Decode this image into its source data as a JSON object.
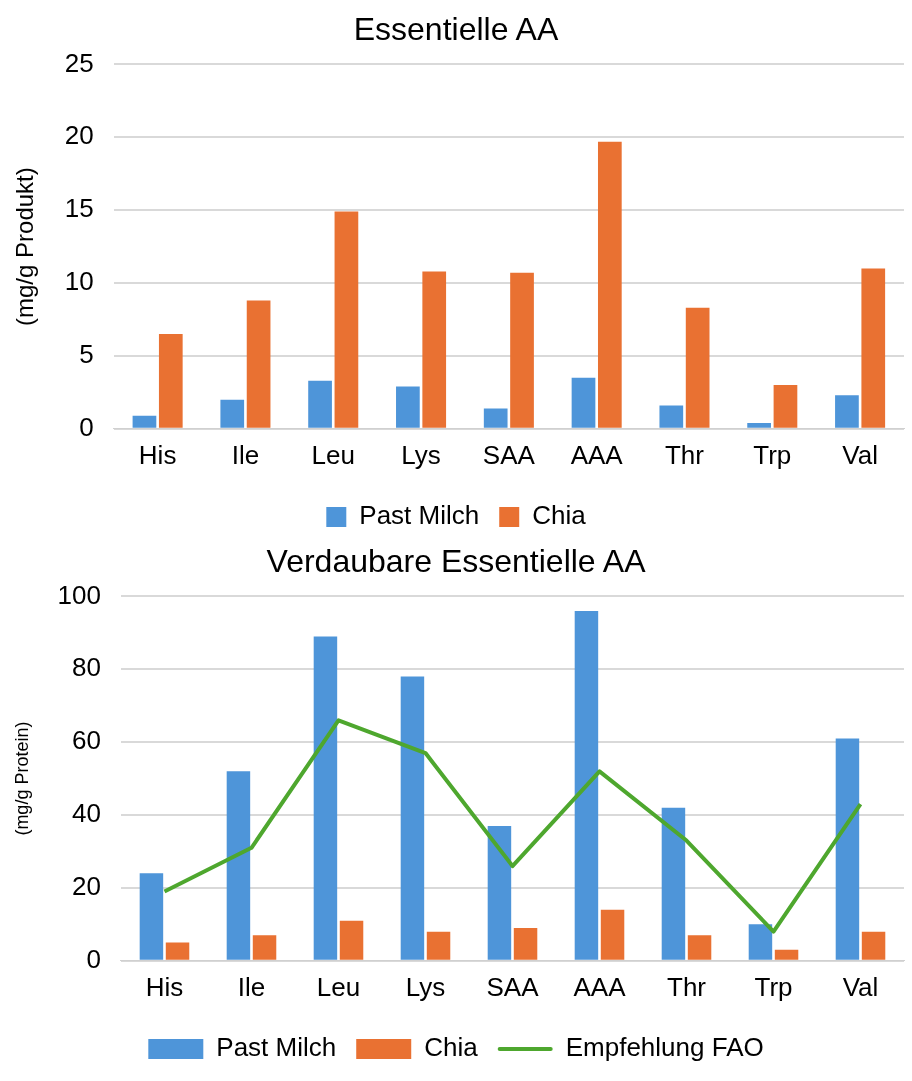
{
  "chart_data": [
    {
      "type": "bar",
      "title": "Essentielle AA",
      "ylabel": "(mg/g Produkt)",
      "categories": [
        "His",
        "Ile",
        "Leu",
        "Lys",
        "SAA",
        "AAA",
        "Thr",
        "Trp",
        "Val"
      ],
      "series": [
        {
          "name": "Past Milch",
          "color": "#4e95d9",
          "values": [
            0.9,
            2.0,
            3.3,
            2.9,
            1.4,
            3.5,
            1.6,
            0.4,
            2.3
          ]
        },
        {
          "name": "Chia",
          "color": "#e97132",
          "values": [
            6.5,
            8.8,
            14.9,
            10.8,
            10.7,
            19.7,
            8.3,
            3.0,
            11.0
          ]
        }
      ],
      "ylim": [
        0,
        25
      ],
      "yticks": [
        0,
        5,
        10,
        15,
        20,
        25
      ],
      "grid": "y",
      "legend": "bottom"
    },
    {
      "type": "bar",
      "title": "Verdaubare Essentielle AA",
      "ylabel": "(mg/g Protein)",
      "categories": [
        "His",
        "Ile",
        "Leu",
        "Lys",
        "SAA",
        "AAA",
        "Thr",
        "Trp",
        "Val"
      ],
      "series": [
        {
          "name": "Past Milch",
          "color": "#4e95d9",
          "values": [
            24,
            52,
            89,
            78,
            37,
            96,
            42,
            10,
            61
          ]
        },
        {
          "name": "Chia",
          "color": "#e97132",
          "values": [
            5,
            7,
            11,
            8,
            9,
            14,
            7,
            3,
            8
          ]
        },
        {
          "name": "Empfehlung FAO",
          "type": "line",
          "color": "#4ea72e",
          "values": [
            19,
            31,
            66,
            57,
            26,
            52,
            33,
            8,
            43
          ]
        }
      ],
      "ylim": [
        0,
        100
      ],
      "yticks": [
        0,
        20,
        40,
        60,
        80,
        100
      ],
      "grid": "y",
      "legend": "bottom"
    }
  ]
}
